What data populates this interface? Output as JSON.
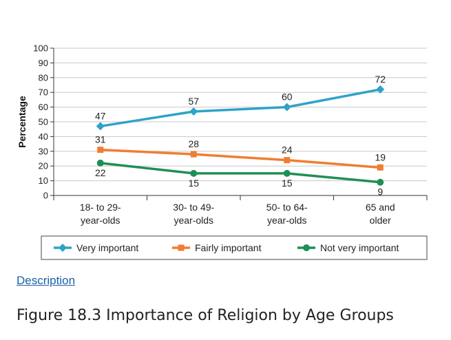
{
  "chart_data": {
    "type": "line",
    "ylabel": "Percentage",
    "xlabel": "",
    "ylim": [
      0,
      100
    ],
    "yticks": [
      "0",
      "10",
      "20",
      "30",
      "40",
      "50",
      "60",
      "70",
      "80",
      "90",
      "100"
    ],
    "categories": [
      [
        "18- to 29-",
        "year-olds"
      ],
      [
        "30- to 49-",
        "year-olds"
      ],
      [
        "50- to 64-",
        "year-olds"
      ],
      [
        "65 and",
        "older"
      ]
    ],
    "grid": true,
    "legend_position": "bottom",
    "series": [
      {
        "name": "Very important",
        "color": "#2ea3c7",
        "marker": "diamond",
        "values": [
          47,
          57,
          60,
          72
        ],
        "label_side": [
          "above",
          "above",
          "above",
          "above"
        ]
      },
      {
        "name": "Fairly important",
        "color": "#f07d32",
        "marker": "square",
        "values": [
          31,
          28,
          24,
          19
        ],
        "label_side": [
          "above",
          "above",
          "above",
          "above"
        ]
      },
      {
        "name": "Not very important",
        "color": "#1f8f55",
        "marker": "circle",
        "values": [
          22,
          15,
          15,
          9
        ],
        "label_side": [
          "below",
          "below",
          "below",
          "below"
        ]
      }
    ]
  },
  "description_link": "Description",
  "caption": "Figure 18.3 Importance of Religion by Age Groups"
}
